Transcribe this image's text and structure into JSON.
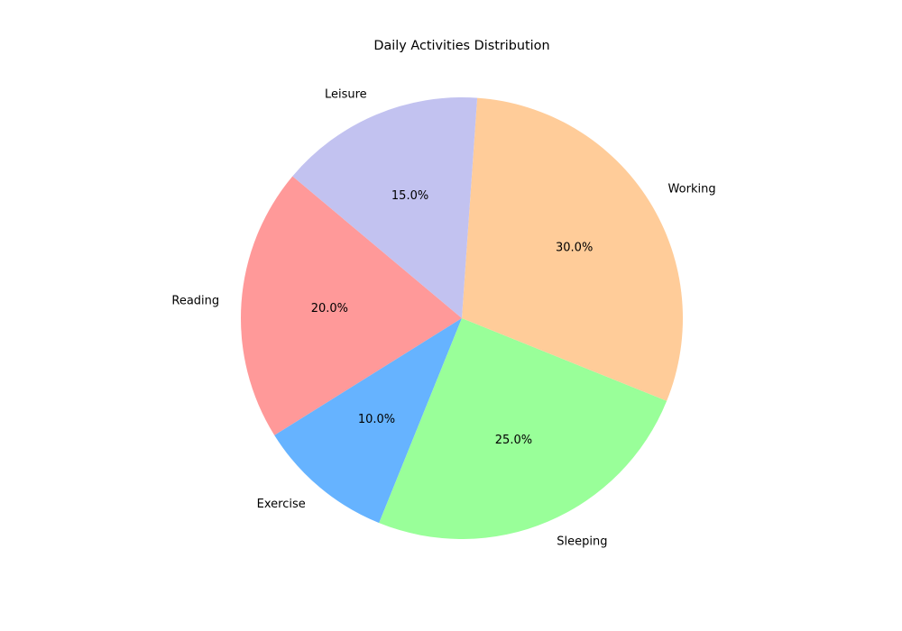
{
  "chart_data": {
    "type": "pie",
    "title": "Daily Activities Distribution",
    "categories": [
      "Reading",
      "Exercise",
      "Sleeping",
      "Working",
      "Leisure"
    ],
    "values": [
      20,
      10,
      25,
      30,
      15
    ],
    "value_labels": [
      "20.0%",
      "10.0%",
      "25.0%",
      "30.0%",
      "15.0%"
    ],
    "colors": [
      "#ff9999",
      "#66b3ff",
      "#99ff99",
      "#ffcc99",
      "#c2c2f0"
    ],
    "start_angle_deg": 140,
    "direction": "counterclockwise",
    "legend": "none"
  }
}
